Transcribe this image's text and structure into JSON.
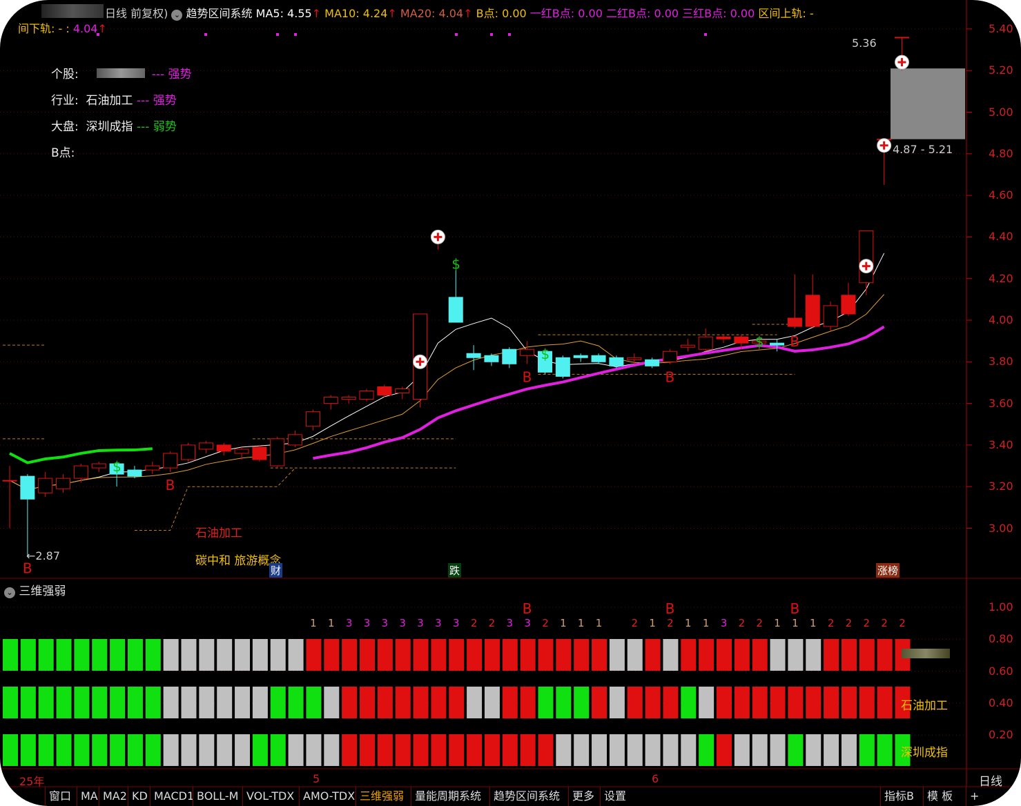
{
  "header": {
    "stock_name_blurred": "",
    "period": "日线 前复权)",
    "indicator": "趋势区间系统",
    "ma5": "MA5: 4.55",
    "ma10": "MA10: 4.24",
    "ma20": "MA20: 4.04",
    "b_point": "B点: 0.00",
    "red1": "一红B点: 0.00",
    "red2": "二红B点: 0.00",
    "red3": "三红B点: 0.00",
    "upper": "区间上轨: -",
    "lower_label": "间下轨: - :",
    "lower_value": "4.04",
    "arrow": "↑"
  },
  "info": {
    "stock_label": "个股:",
    "stock_state": "--- 强势",
    "industry_label": "行业:",
    "industry_name": "石油加工",
    "industry_state": "--- 强势",
    "market_label": "大盘:",
    "market_name": "深圳成指",
    "market_state": "--- 弱势",
    "b_label": "B点:"
  },
  "annotations": {
    "low": "←2.87",
    "high": "5.36",
    "range": "4.87 - 5.21",
    "industry_tag": "石油加工",
    "concept_tag": "碳中和 旅游概念",
    "badge_cai": "财",
    "badge_die": "跌",
    "badge_zhang": "涨榜"
  },
  "price_axis": [
    "5.40",
    "5.20",
    "5.00",
    "4.80",
    "4.60",
    "4.40",
    "4.20",
    "4.00",
    "3.80",
    "3.60",
    "3.40",
    "3.20",
    "3.00"
  ],
  "lower_panel": {
    "title": "三维强弱",
    "axis": [
      "1.00",
      "0.80",
      "0.60",
      "0.40",
      "0.20"
    ],
    "row_labels": [
      "",
      "石油加工",
      "深圳成指"
    ]
  },
  "date_axis": {
    "year": "25年",
    "m5": "5",
    "m6": "6",
    "period": "日线"
  },
  "tabs": [
    "窗口",
    "MA",
    "MA2",
    "KD",
    "MACD1",
    "BOLL-M",
    "VOL-TDX",
    "AMO-TDX",
    "三维强弱",
    "量能周期系统",
    "趋势区间系统",
    "更多",
    "设置"
  ],
  "right_tabs": [
    "指标B",
    "模 板",
    "+"
  ],
  "active_tab": "三维强弱",
  "colors": {
    "up": "#e01010",
    "down": "#50f0f0",
    "green": "#10e010",
    "gray": "#c0c0c0",
    "magenta": "#e020e0",
    "ma5": "#ffffff",
    "ma10": "#e0a030"
  },
  "chart_data": {
    "type": "candlestick",
    "ylim": [
      2.85,
      5.45
    ],
    "candles": [
      [
        3.23,
        3.23,
        3.3,
        3.0
      ],
      [
        3.25,
        3.14,
        3.26,
        2.87
      ],
      [
        3.17,
        3.24,
        3.27,
        3.15
      ],
      [
        3.19,
        3.24,
        3.26,
        3.17
      ],
      [
        3.24,
        3.3,
        3.31,
        3.22
      ],
      [
        3.29,
        3.31,
        3.32,
        3.27
      ],
      [
        3.31,
        3.26,
        3.32,
        3.2
      ],
      [
        3.28,
        3.25,
        3.3,
        3.24
      ],
      [
        3.28,
        3.3,
        3.32,
        3.26
      ],
      [
        3.29,
        3.36,
        3.37,
        3.27
      ],
      [
        3.33,
        3.4,
        3.41,
        3.32
      ],
      [
        3.38,
        3.41,
        3.42,
        3.36
      ],
      [
        3.37,
        3.4,
        3.41,
        3.35
      ],
      [
        3.36,
        3.38,
        3.39,
        3.33
      ],
      [
        3.33,
        3.39,
        3.4,
        3.32
      ],
      [
        3.3,
        3.43,
        3.44,
        3.29
      ],
      [
        3.4,
        3.45,
        3.47,
        3.39
      ],
      [
        3.49,
        3.56,
        3.57,
        3.47
      ],
      [
        3.6,
        3.63,
        3.64,
        3.57
      ],
      [
        3.62,
        3.63,
        3.64,
        3.6
      ],
      [
        3.62,
        3.66,
        3.67,
        3.61
      ],
      [
        3.64,
        3.68,
        3.69,
        3.63
      ],
      [
        3.65,
        3.67,
        3.68,
        3.62
      ],
      [
        3.62,
        4.03,
        4.03,
        3.58
      ],
      [
        4.4,
        4.41,
        4.41,
        4.34
      ],
      [
        4.11,
        3.99,
        4.24,
        3.99
      ],
      [
        3.84,
        3.82,
        3.88,
        3.76
      ],
      [
        3.83,
        3.8,
        3.84,
        3.78
      ],
      [
        3.86,
        3.79,
        3.87,
        3.77
      ],
      [
        3.83,
        3.86,
        3.9,
        3.79
      ],
      [
        3.85,
        3.75,
        3.86,
        3.74
      ],
      [
        3.82,
        3.73,
        3.83,
        3.72
      ],
      [
        3.83,
        3.82,
        3.84,
        3.8
      ],
      [
        3.83,
        3.8,
        3.84,
        3.79
      ],
      [
        3.82,
        3.78,
        3.83,
        3.77
      ],
      [
        3.81,
        3.82,
        3.84,
        3.79
      ],
      [
        3.81,
        3.78,
        3.82,
        3.77
      ],
      [
        3.8,
        3.85,
        3.86,
        3.79
      ],
      [
        3.87,
        3.88,
        3.91,
        3.85
      ],
      [
        3.86,
        3.92,
        3.96,
        3.85
      ],
      [
        3.91,
        3.92,
        3.93,
        3.89
      ],
      [
        3.89,
        3.92,
        3.93,
        3.86
      ],
      [
        3.89,
        3.9,
        3.92,
        3.86
      ],
      [
        3.89,
        3.88,
        3.91,
        3.85
      ],
      [
        3.97,
        4.01,
        4.22,
        3.96
      ],
      [
        3.97,
        4.12,
        4.22,
        3.96
      ],
      [
        3.97,
        4.07,
        4.09,
        3.95
      ],
      [
        4.03,
        4.12,
        4.18,
        4.02
      ],
      [
        4.18,
        4.43,
        4.43,
        4.12
      ],
      [
        4.87,
        4.87,
        4.87,
        4.65
      ],
      [
        5.36,
        5.36,
        5.36,
        5.2
      ]
    ],
    "filled_up": [
      12,
      14,
      21,
      40,
      41,
      44,
      45,
      47
    ],
    "b_signals": [
      1,
      9,
      29,
      37,
      44
    ],
    "s_signals": [
      6,
      25,
      30,
      42
    ],
    "plus_markers": [
      [
        23,
        3.8
      ],
      [
        24,
        4.4
      ],
      [
        48,
        4.26
      ],
      [
        49,
        4.84
      ],
      [
        50,
        5.24
      ]
    ],
    "range_box": [
      4.87,
      5.21
    ],
    "strength_rows": [
      "GGGGGGGGGXXXXXXXXRRRRRRRRRRRRRRRRRXXRXRRRRRXXXRRRRR",
      "GGGGGGGGGXXXXXXGGGXRRRRRRRXXRRGGGRXRRRGXRRRRRRRRRRR",
      "GGGGGGGGGXXXXXGGXXXRRRRRRRRRRRRXXXXXXXXGRXXXGXXXGGG"
    ],
    "strength_numbers": [
      "",
      "",
      "",
      "",
      "",
      "",
      "",
      "",
      "",
      "",
      "",
      "",
      "",
      "",
      "",
      "",
      "",
      "1",
      "1",
      "3",
      "3",
      "3",
      "3",
      "3",
      "3",
      "3",
      "2",
      "2",
      "3",
      "3",
      "2",
      "1",
      "1",
      "1",
      "",
      "2",
      "1",
      "2",
      "1",
      "1",
      "3",
      "2",
      "2",
      "1",
      "1",
      "1",
      "2",
      "2",
      "2",
      "2",
      "2"
    ],
    "strength_b": [
      29,
      37,
      44
    ]
  }
}
